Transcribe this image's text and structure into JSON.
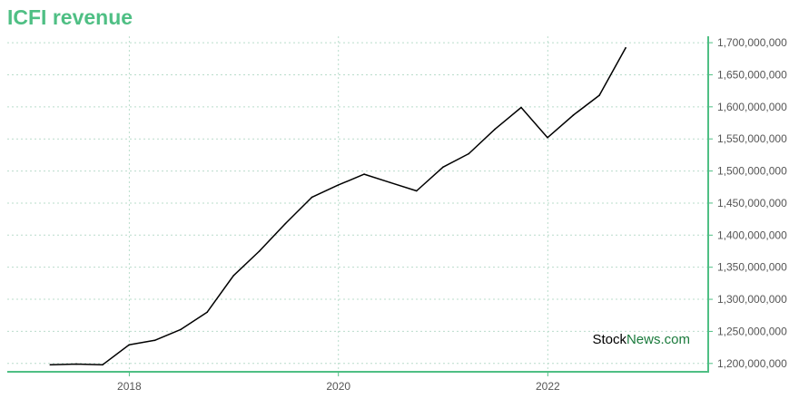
{
  "title": "ICFI revenue",
  "watermark": {
    "part1": "Stock",
    "part2": "News",
    "part3": ".com"
  },
  "colors": {
    "accent": "#4fbf84",
    "line": "#000000",
    "grid": "#b9dccb",
    "brand_dark": "#1a7a3c"
  },
  "chart_data": {
    "type": "line",
    "title": "ICFI revenue",
    "xlabel": "",
    "ylabel": "",
    "x_ticks": [
      "2018",
      "2020",
      "2022"
    ],
    "y_ticks": [
      "1,200,000,000",
      "1,250,000,000",
      "1,300,000,000",
      "1,350,000,000",
      "1,400,000,000",
      "1,450,000,000",
      "1,500,000,000",
      "1,550,000,000",
      "1,600,000,000",
      "1,650,000,000",
      "1,700,000,000"
    ],
    "ylim": [
      1187000000,
      1710000000
    ],
    "xlim": [
      "2016-11-01",
      "2023-07-15"
    ],
    "grid": true,
    "series": [
      {
        "name": "",
        "x": [
          "2017-03-31",
          "2017-06-30",
          "2017-09-30",
          "2017-12-31",
          "2018-03-31",
          "2018-06-30",
          "2018-09-30",
          "2018-12-31",
          "2019-03-31",
          "2019-06-30",
          "2019-09-30",
          "2019-12-31",
          "2020-03-31",
          "2020-06-30",
          "2020-09-30",
          "2020-12-31",
          "2021-03-31",
          "2021-06-30",
          "2021-09-30",
          "2021-12-31",
          "2022-03-31",
          "2022-06-30",
          "2022-09-30"
        ],
        "y": [
          1198000000,
          1199000000,
          1198000000,
          1229000000,
          1236000000,
          1253000000,
          1280000000,
          1337000000,
          1375000000,
          1418000000,
          1459000000,
          1478000000,
          1495000000,
          1482000000,
          1469000000,
          1506000000,
          1527000000,
          1565000000,
          1599000000,
          1552000000,
          1587000000,
          1618000000,
          1692000000
        ]
      }
    ]
  }
}
